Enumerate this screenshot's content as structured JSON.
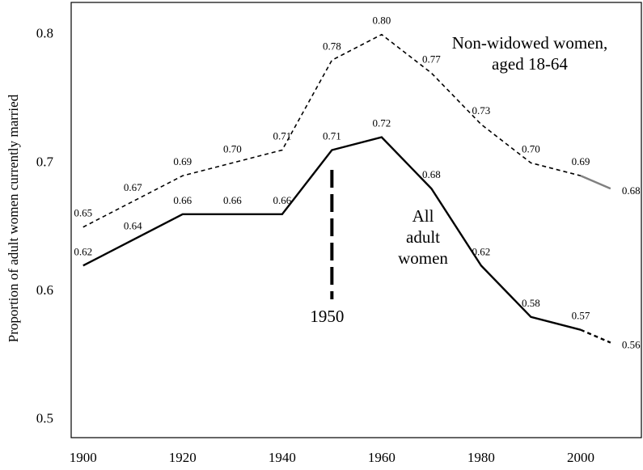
{
  "chart_data": {
    "type": "line",
    "y_label": "Proportion of adult women currently married",
    "x": [
      1900,
      1910,
      1920,
      1930,
      1940,
      1950,
      1960,
      1970,
      1980,
      1990,
      2000,
      2006
    ],
    "xlim": [
      1897.6,
      2012.2
    ],
    "xticks": [
      1900,
      1920,
      1940,
      1960,
      1980,
      2000
    ],
    "ylim": [
      0.486,
      0.825
    ],
    "yticks": [
      0.5,
      0.6,
      0.7,
      0.8
    ],
    "series": [
      {
        "name": "Non-widowed women, aged 18-64",
        "color": "#000000",
        "style": "dashed",
        "last_segment_color": "#808080",
        "last_segment_style": "solid",
        "values": [
          0.65,
          0.67,
          0.69,
          0.7,
          0.71,
          0.78,
          0.8,
          0.77,
          0.73,
          0.7,
          0.69,
          0.68
        ],
        "value_labels": [
          "0.65",
          "0.67",
          "0.69",
          "0.70",
          "0.71",
          "0.78",
          "0.80",
          "0.77",
          "0.73",
          "0.70",
          "0.69",
          "0.68"
        ]
      },
      {
        "name": "All adult women",
        "color": "#000000",
        "style": "solid",
        "last_segment_color": "#000000",
        "last_segment_style": "dashed",
        "values": [
          0.62,
          0.64,
          0.66,
          0.66,
          0.66,
          0.71,
          0.72,
          0.68,
          0.62,
          0.58,
          0.57,
          0.56
        ],
        "value_labels": [
          "0.62",
          "0.64",
          "0.66",
          "0.66",
          "0.66",
          "0.71",
          "0.72",
          "0.68",
          "0.62",
          "0.58",
          "0.57",
          "0.56"
        ]
      }
    ],
    "annotations": [
      {
        "x": 1950,
        "label": "1950"
      }
    ]
  }
}
